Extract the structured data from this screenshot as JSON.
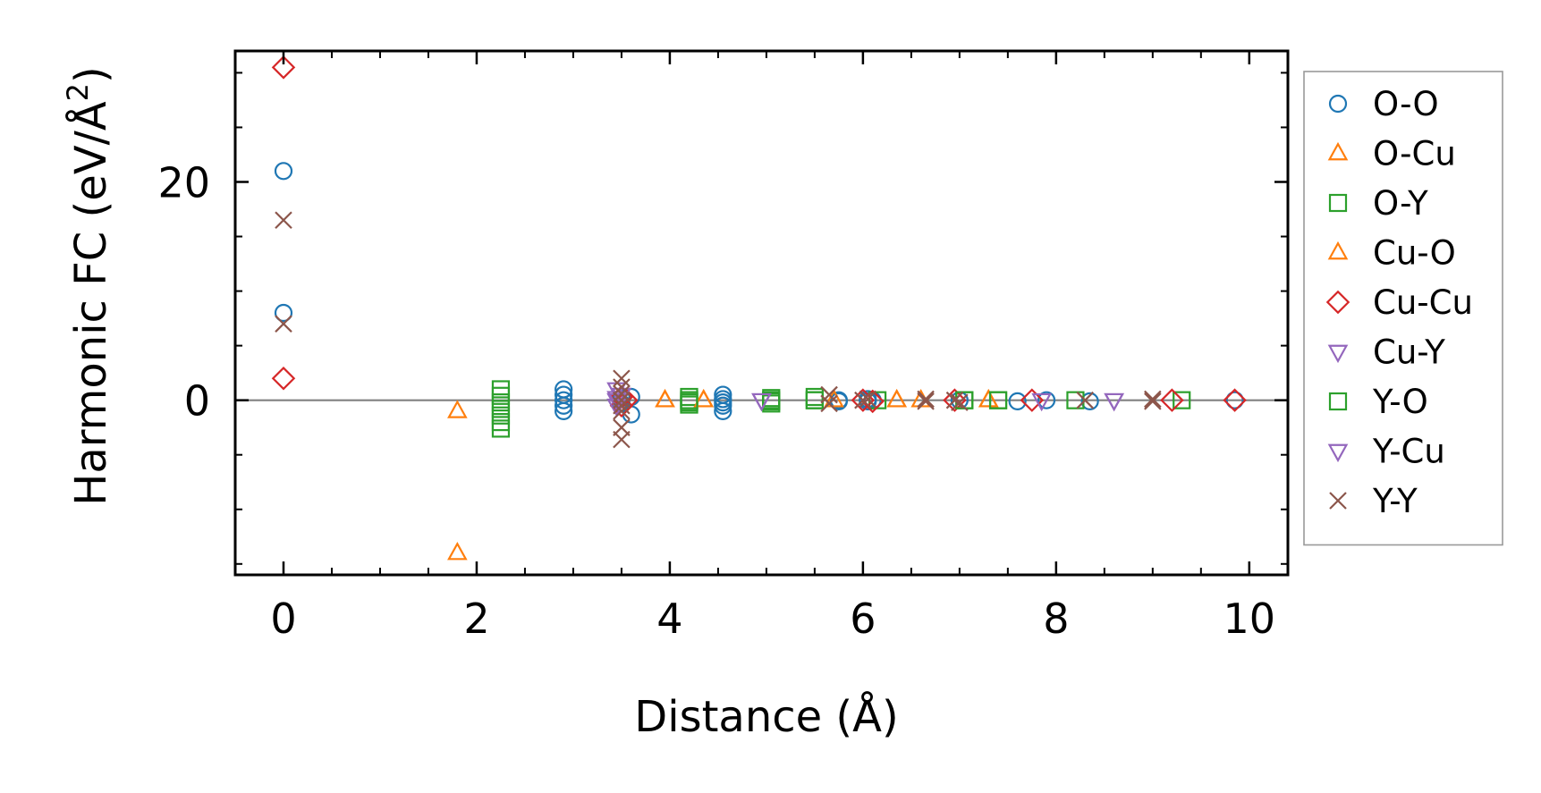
{
  "chart_data": {
    "type": "scatter",
    "title": "",
    "xlabel": "Distance (Å)",
    "ylabel_main": "Harmonic FC (eV/Å",
    "ylabel_sup": "2",
    "ylabel_end": ")",
    "xlim": [
      -0.5,
      10.4
    ],
    "ylim": [
      -16,
      32
    ],
    "xticks": [
      0,
      2,
      4,
      6,
      8,
      10
    ],
    "xtick_labels": [
      "0",
      "2",
      "4",
      "6",
      "8",
      "10"
    ],
    "xminor_step": 0.5,
    "yticks": [
      0,
      20
    ],
    "ytick_labels": [
      "0",
      "20"
    ],
    "yminor_step": 5,
    "zero_line": true,
    "grid": false,
    "legend_position": "outside-right",
    "series": [
      {
        "name": "O-O",
        "marker": "circle",
        "color": "#1f77b4",
        "x": [
          0,
          0,
          2.9,
          2.9,
          2.9,
          2.9,
          2.9,
          3.5,
          3.5,
          3.6,
          3.6,
          4.55,
          4.55,
          4.55,
          4.55,
          4.55,
          5.75,
          5.75,
          6.05,
          6.05,
          6.1,
          7.0,
          7.6,
          7.9,
          8.35,
          9.85
        ],
        "y": [
          21,
          8,
          1,
          0.5,
          0,
          -0.5,
          -1,
          0.2,
          -0.3,
          0.3,
          -1.3,
          0.5,
          0.1,
          -0.2,
          -0.5,
          -1,
          0,
          -0.1,
          0.1,
          -0.1,
          0,
          0,
          -0.1,
          0,
          -0.1,
          0
        ]
      },
      {
        "name": "O-Cu",
        "marker": "triangle-up",
        "color": "#ff7f0e",
        "x": [
          1.8,
          1.8,
          3.95,
          4.35,
          5.7,
          6.35,
          6.6,
          7.3
        ],
        "y": [
          -1,
          -14,
          0,
          0,
          0,
          0,
          0,
          0
        ]
      },
      {
        "name": "O-Y",
        "marker": "square",
        "color": "#2ca02c",
        "x": [
          2.25,
          2.25,
          2.25,
          2.25,
          2.25,
          2.25,
          2.25,
          4.2,
          4.2,
          4.2,
          4.2,
          5.05,
          5.05,
          5.05,
          5.5,
          5.5,
          6.15,
          7.05,
          7.4,
          8.2,
          9.3
        ],
        "y": [
          1,
          0.4,
          -0.2,
          -0.8,
          -1.4,
          -2.0,
          -2.6,
          0.3,
          -0.2,
          0,
          -0.4,
          0.2,
          -0.1,
          -0.3,
          0.3,
          0,
          0,
          0,
          0,
          0,
          0
        ]
      },
      {
        "name": "Cu-O",
        "marker": "triangle-up",
        "color": "#ff7f0e",
        "x": [
          3.95,
          4.35,
          6.35,
          7.3
        ],
        "y": [
          0,
          0,
          0,
          0
        ]
      },
      {
        "name": "Cu-Cu",
        "marker": "diamond",
        "color": "#d62728",
        "x": [
          0,
          0,
          3.5,
          3.5,
          3.55,
          6.0,
          6.1,
          6.95,
          7.75,
          9.2,
          9.85
        ],
        "y": [
          30.5,
          2,
          0.3,
          -0.5,
          0,
          0,
          -0.1,
          0,
          0,
          0,
          0
        ]
      },
      {
        "name": "Cu-Y",
        "marker": "triangle-down",
        "color": "#9467bd",
        "x": [
          3.45,
          3.45,
          3.45,
          3.5,
          4.95,
          7.85,
          8.6
        ],
        "y": [
          1,
          0,
          -0.5,
          0.5,
          0,
          0,
          0
        ]
      },
      {
        "name": "Y-O",
        "marker": "square",
        "color": "#2ca02c",
        "x": [
          4.2,
          5.05,
          5.5,
          7.05,
          7.4
        ],
        "y": [
          0,
          0,
          0,
          0,
          0
        ]
      },
      {
        "name": "Y-Cu",
        "marker": "triangle-down",
        "color": "#9467bd",
        "x": [
          3.45,
          4.95,
          8.6
        ],
        "y": [
          0.2,
          0,
          0
        ]
      },
      {
        "name": "Y-Y",
        "marker": "x",
        "color": "#8c564b",
        "x": [
          0,
          0,
          3.5,
          3.5,
          3.5,
          3.5,
          3.5,
          3.5,
          3.5,
          3.5,
          5.65,
          5.65,
          6.0,
          6.05,
          6.65,
          6.65,
          6.95,
          7.0,
          8.3,
          9.0,
          9.0
        ],
        "y": [
          16.5,
          7,
          2,
          1.2,
          0.6,
          0,
          -0.5,
          -1,
          -2.5,
          -3.6,
          0.5,
          -0.3,
          0,
          0.1,
          0.1,
          -0.1,
          0,
          -0.2,
          0,
          0.1,
          -0.1
        ]
      }
    ]
  }
}
